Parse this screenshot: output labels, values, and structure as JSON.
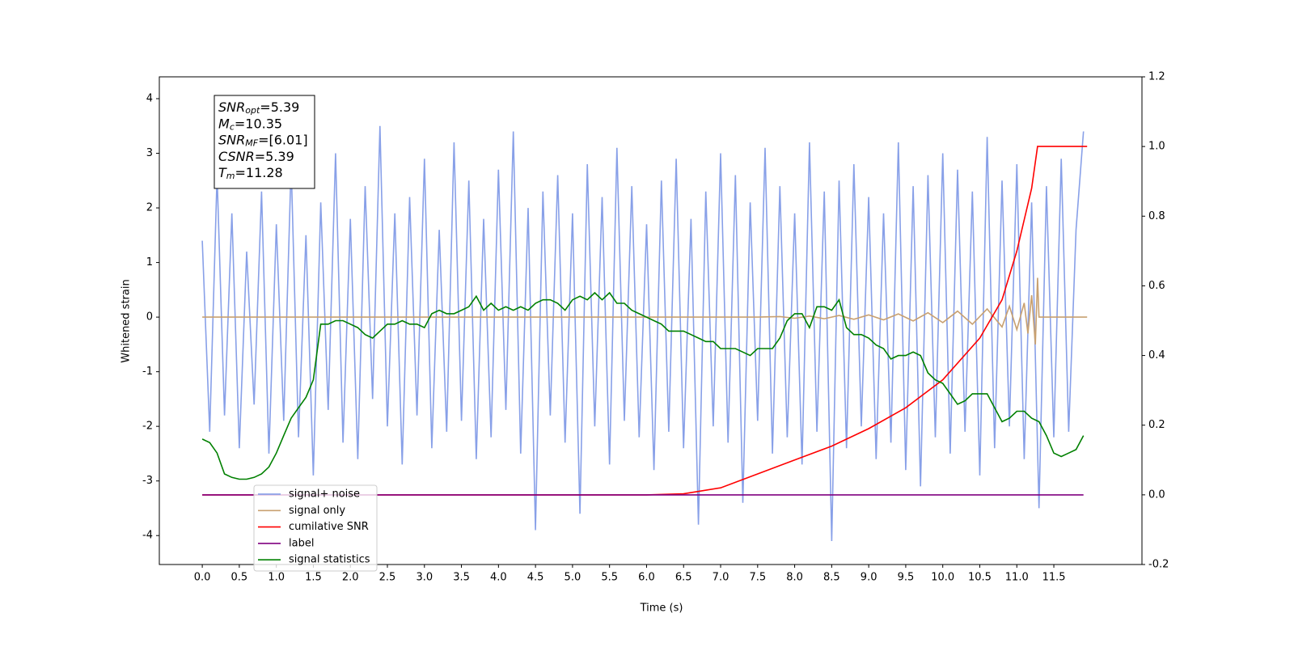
{
  "chart_data": {
    "type": "line",
    "xlabel": "Time (s)",
    "ylabel": "Whitened strain",
    "xlim": [
      -0.58,
      12.69
    ],
    "ylim": [
      -4.53,
      4.4
    ],
    "y2lim": [
      -0.2,
      1.2
    ],
    "xticks": [
      {
        "value": 0,
        "label": "0.0"
      },
      0.5,
      {
        "value": 1,
        "label": "1.0"
      },
      1.5,
      {
        "value": 2,
        "label": "2.0"
      },
      2.5,
      {
        "value": 3,
        "label": "3.0"
      },
      3.5,
      {
        "value": 4,
        "label": "4.0"
      },
      4.5,
      {
        "value": 5,
        "label": "5.0"
      },
      5.5,
      {
        "value": 6,
        "label": "6.0"
      },
      6.5,
      {
        "value": 7,
        "label": "7.0"
      },
      7.5,
      {
        "value": 8,
        "label": "8.0"
      },
      8.5,
      {
        "value": 9,
        "label": "9.0"
      },
      9.5,
      {
        "value": 10,
        "label": "10.0"
      },
      10.5,
      {
        "value": 11,
        "label": "11.0"
      },
      11.5
    ],
    "yticks": [
      -4,
      -3,
      -2,
      -1,
      0,
      1,
      2,
      3,
      4
    ],
    "y2ticks": [
      -0.2,
      {
        "value": 0,
        "label": "0.0"
      },
      0.2,
      0.4,
      0.6,
      0.8,
      {
        "value": 1,
        "label": "1.0"
      },
      1.2
    ],
    "legend": "lower left",
    "annotation": [
      {
        "main": "SNR",
        "sub": "opt",
        "rest": "=5.39"
      },
      {
        "main": "M",
        "sub": "c",
        "rest": "=10.35"
      },
      {
        "main": "SNR",
        "sub": "MF",
        "rest": "=[6.01]"
      },
      {
        "main": "CSNR",
        "sub": null,
        "rest": "=5.39"
      },
      {
        "main": "T",
        "sub": "m",
        "rest": "=11.28"
      }
    ],
    "x": [
      0,
      0.1,
      0.2,
      0.3,
      0.4,
      0.5,
      0.6,
      0.7,
      0.8,
      0.9,
      1,
      1.1,
      1.2,
      1.3,
      1.4,
      1.5,
      1.6,
      1.7,
      1.8,
      1.9,
      2,
      2.1,
      2.2,
      2.3,
      2.4,
      2.5,
      2.6,
      2.7,
      2.8,
      2.9,
      3,
      3.1,
      3.2,
      3.3,
      3.4,
      3.5,
      3.6,
      3.7,
      3.8,
      3.9,
      4,
      4.1,
      4.2,
      4.3,
      4.4,
      4.5,
      4.6,
      4.7,
      4.8,
      4.9,
      5,
      5.1,
      5.2,
      5.3,
      5.4,
      5.5,
      5.6,
      5.7,
      5.8,
      5.9,
      6,
      6.1,
      6.2,
      6.3,
      6.4,
      6.5,
      6.6,
      6.7,
      6.8,
      6.9,
      7,
      7.1,
      7.2,
      7.3,
      7.4,
      7.5,
      7.6,
      7.7,
      7.8,
      7.9,
      8,
      8.1,
      8.2,
      8.3,
      8.4,
      8.5,
      8.6,
      8.7,
      8.8,
      8.9,
      9,
      9.1,
      9.2,
      9.3,
      9.4,
      9.5,
      9.6,
      9.7,
      9.8,
      9.9,
      10,
      10.1,
      10.2,
      10.3,
      10.4,
      10.5,
      10.6,
      10.7,
      10.8,
      10.9,
      11,
      11.1,
      11.2,
      11.3,
      11.4,
      11.5,
      11.6,
      11.7,
      11.8,
      11.9
    ],
    "series": [
      {
        "name": "signal+ noise",
        "color": "#7b96e6",
        "values": [
          1.4,
          -2.1,
          2.6,
          -1.8,
          1.9,
          -2.4,
          1.2,
          -1.6,
          2.3,
          -2.5,
          1.7,
          -1.9,
          2.8,
          -2.2,
          1.5,
          -2.9,
          2.1,
          -1.7,
          3.0,
          -2.3,
          1.8,
          -2.6,
          2.4,
          -1.5,
          3.5,
          -2.0,
          1.9,
          -2.7,
          2.2,
          -1.8,
          2.9,
          -2.4,
          1.6,
          -2.1,
          3.2,
          -1.9,
          2.5,
          -2.6,
          1.8,
          -2.2,
          2.7,
          -1.7,
          3.4,
          -2.5,
          2.0,
          -3.9,
          2.3,
          -1.8,
          2.6,
          -2.3,
          1.9,
          -3.6,
          2.8,
          -2.0,
          2.2,
          -2.7,
          3.1,
          -1.9,
          2.4,
          -2.2,
          1.7,
          -2.8,
          2.5,
          -2.1,
          2.9,
          -2.4,
          1.8,
          -3.8,
          2.3,
          -2.0,
          3.0,
          -2.3,
          2.6,
          -3.4,
          2.1,
          -1.9,
          3.1,
          -2.5,
          2.4,
          -2.2,
          1.9,
          -2.7,
          3.2,
          -2.1,
          2.3,
          -4.1,
          2.5,
          -2.4,
          2.8,
          -2.0,
          2.2,
          -2.6,
          1.9,
          -2.3,
          3.2,
          -2.8,
          2.4,
          -3.1,
          2.6,
          -2.2,
          3.0,
          -2.5,
          2.7,
          -2.1,
          2.3,
          -2.9,
          3.3,
          -2.4,
          2.5,
          -2.0,
          2.8,
          -2.6,
          2.1,
          -3.5,
          2.4,
          -2.2,
          2.9,
          -2.1,
          1.6,
          3.4
        ]
      },
      {
        "name": "signal only",
        "color": "#c8a070",
        "x": [
          0,
          7.5,
          7.8,
          8.0,
          8.2,
          8.4,
          8.6,
          8.8,
          9.0,
          9.2,
          9.4,
          9.6,
          9.8,
          10.0,
          10.2,
          10.4,
          10.6,
          10.8,
          10.9,
          11.0,
          11.1,
          11.15,
          11.2,
          11.25,
          11.28,
          11.3,
          11.95
        ],
        "values": [
          0,
          0,
          0.01,
          -0.02,
          0.02,
          -0.03,
          0.03,
          -0.04,
          0.04,
          -0.05,
          0.06,
          -0.07,
          0.08,
          -0.1,
          0.11,
          -0.13,
          0.15,
          -0.18,
          0.2,
          -0.23,
          0.26,
          -0.3,
          0.4,
          -0.5,
          0.72,
          0,
          0
        ]
      },
      {
        "name": "cumilative SNR",
        "color": "#ff0000",
        "axis": "y2",
        "x": [
          0,
          6,
          6.5,
          7,
          7.5,
          8,
          8.5,
          9,
          9.5,
          10,
          10.5,
          10.8,
          11,
          11.2,
          11.28,
          11.95
        ],
        "values": [
          0,
          0,
          0.003,
          0.02,
          0.06,
          0.1,
          0.14,
          0.19,
          0.25,
          0.33,
          0.45,
          0.56,
          0.7,
          0.88,
          1.0,
          1.0
        ]
      },
      {
        "name": "label",
        "color": "#800080",
        "axis": "y2",
        "x": [
          0,
          11.9
        ],
        "values": [
          0,
          0
        ]
      },
      {
        "name": "signal statistics",
        "color": "#008000",
        "axis": "y2",
        "values": [
          0.16,
          0.15,
          0.12,
          0.06,
          0.05,
          0.045,
          0.045,
          0.05,
          0.06,
          0.08,
          0.12,
          0.17,
          0.22,
          0.25,
          0.28,
          0.33,
          0.49,
          0.49,
          0.5,
          0.5,
          0.49,
          0.48,
          0.46,
          0.45,
          0.47,
          0.49,
          0.49,
          0.5,
          0.49,
          0.49,
          0.48,
          0.52,
          0.53,
          0.52,
          0.52,
          0.53,
          0.54,
          0.57,
          0.53,
          0.55,
          0.53,
          0.54,
          0.53,
          0.54,
          0.53,
          0.55,
          0.56,
          0.56,
          0.55,
          0.53,
          0.56,
          0.57,
          0.56,
          0.58,
          0.56,
          0.58,
          0.55,
          0.55,
          0.53,
          0.52,
          0.51,
          0.5,
          0.49,
          0.47,
          0.47,
          0.47,
          0.46,
          0.45,
          0.44,
          0.44,
          0.42,
          0.42,
          0.42,
          0.41,
          0.4,
          0.42,
          0.42,
          0.42,
          0.45,
          0.5,
          0.52,
          0.52,
          0.48,
          0.54,
          0.54,
          0.53,
          0.56,
          0.48,
          0.46,
          0.46,
          0.45,
          0.43,
          0.42,
          0.39,
          0.4,
          0.4,
          0.41,
          0.4,
          0.35,
          0.33,
          0.32,
          0.29,
          0.26,
          0.27,
          0.29,
          0.29,
          0.29,
          0.25,
          0.21,
          0.22,
          0.24,
          0.24,
          0.22,
          0.21,
          0.17,
          0.12,
          0.11,
          0.12,
          0.13,
          0.17
        ]
      }
    ]
  }
}
